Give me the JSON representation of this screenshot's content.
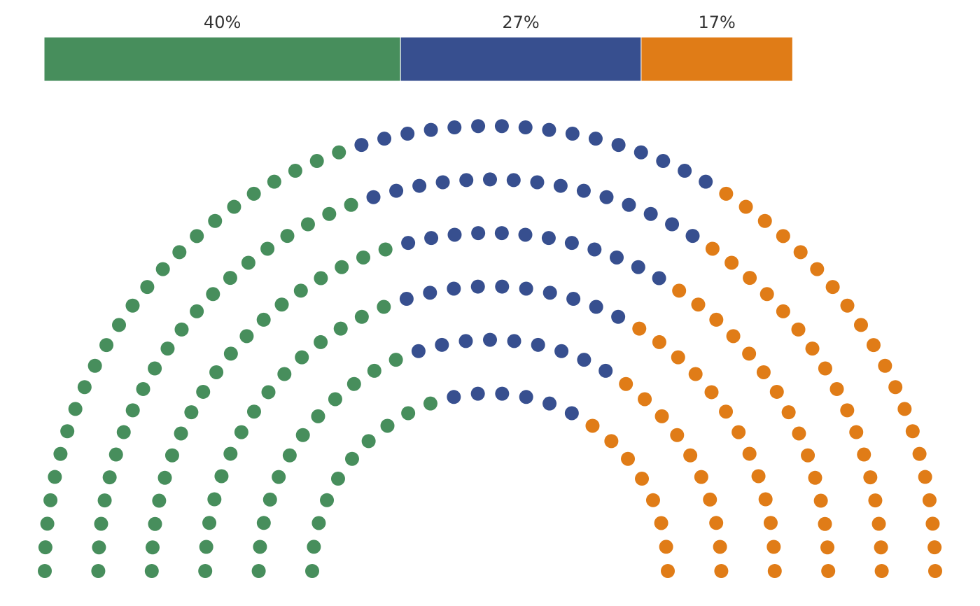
{
  "chart_data": {
    "type": "parliament",
    "total_seats": 252,
    "rows": 6,
    "parties": [
      {
        "share_label": "40%",
        "share": 0.4,
        "color": "#478e5c"
      },
      {
        "share_label": "27%",
        "share": 0.27,
        "color": "#374f8f"
      },
      {
        "share_label": "17%",
        "share": 0.17,
        "color": "#e07c17"
      }
    ],
    "title": "",
    "legend": "none",
    "grid": false
  }
}
